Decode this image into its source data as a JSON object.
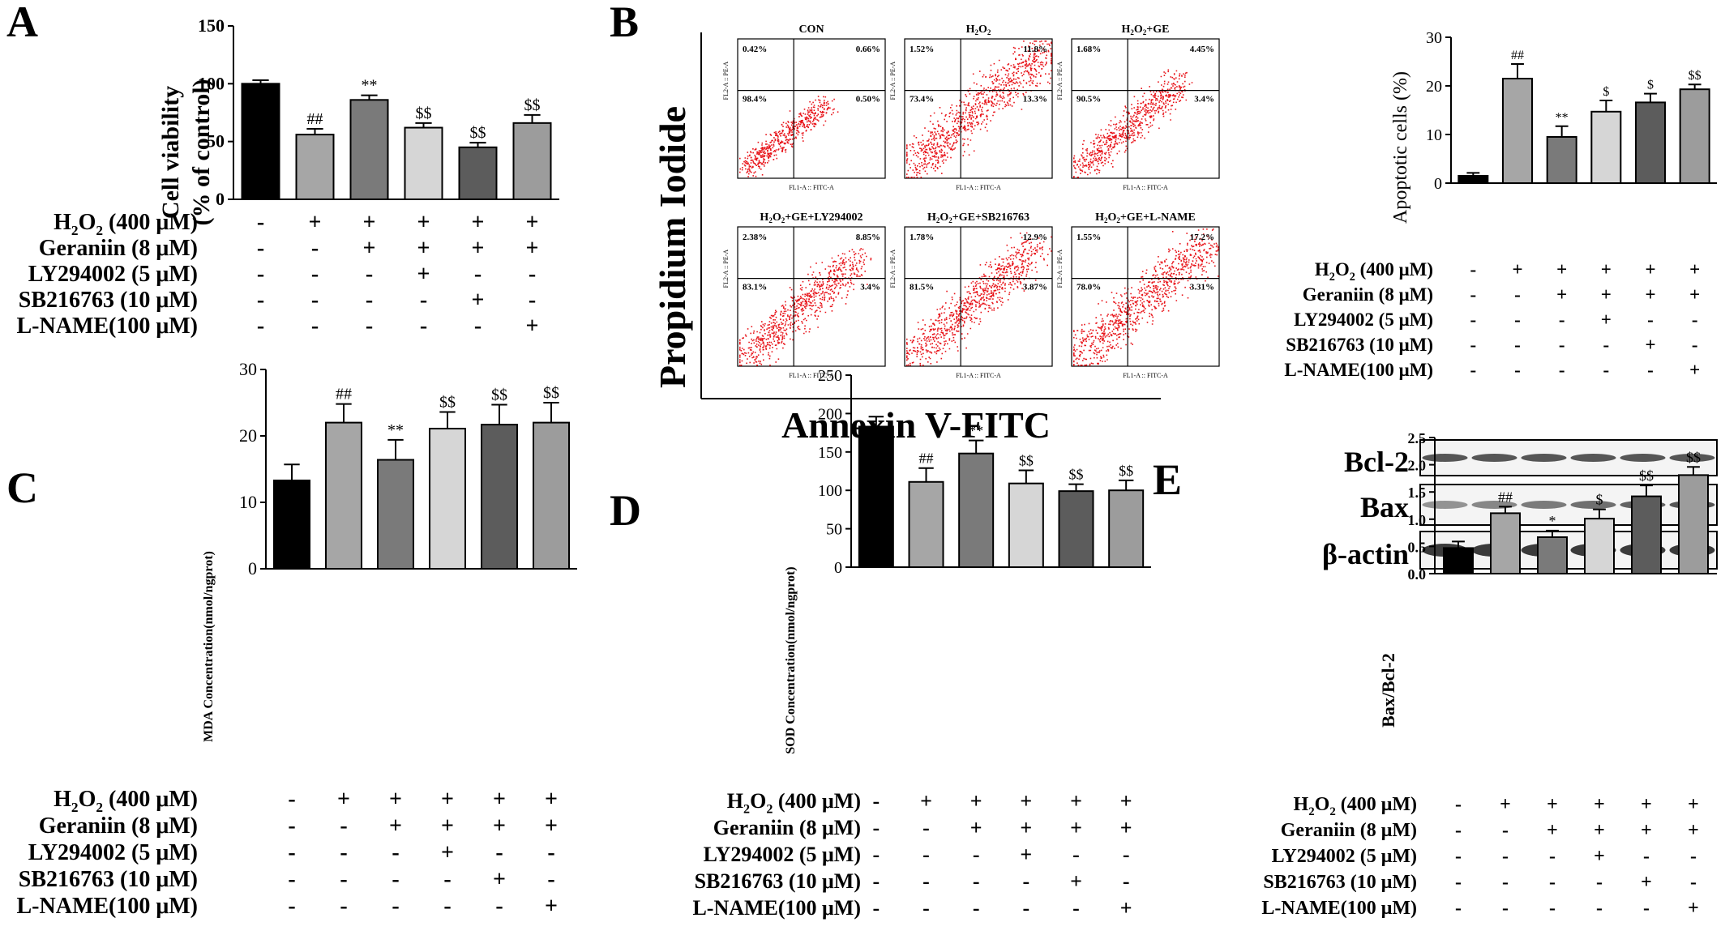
{
  "panels": {
    "A": {
      "letter": "A",
      "ylabel_line1": "Cell viability",
      "ylabel_line2": "(% of control)"
    },
    "B": {
      "letter": "B",
      "x_axis_label": "Annexin V-FITC",
      "y_axis_label": "Propidium Iodide",
      "apoptosis_ylabel": "Apoptotic cells (%)"
    },
    "C": {
      "letter": "C",
      "ylabel": "MDA Concentration(nmol/ngprot)"
    },
    "D": {
      "letter": "D",
      "ylabel": "SOD Concentration(nmol/ngprot)"
    },
    "E": {
      "letter": "E",
      "ylabel": "Bax/Bcl-2",
      "blot_labels": [
        "Bcl-2",
        "Bax",
        "β-actin"
      ]
    }
  },
  "conditions": {
    "rows": [
      {
        "pre": "H",
        "sub1": "2",
        "mid": "O",
        "sub2": "2",
        "post": " (400 μM)",
        "signs": [
          "-",
          "+",
          "+",
          "+",
          "+",
          "+"
        ]
      },
      {
        "pre": "Geraniin (8 μM)",
        "signs": [
          "-",
          "-",
          "+",
          "+",
          "+",
          "+"
        ]
      },
      {
        "pre": "LY294002 (5 μM)",
        "signs": [
          "-",
          "-",
          "-",
          "+",
          "-",
          "-"
        ]
      },
      {
        "pre": "SB216763 (10 μM)",
        "signs": [
          "-",
          "-",
          "-",
          "-",
          "+",
          "-"
        ]
      },
      {
        "pre": "L-NAME(100 μM)",
        "signs": [
          "-",
          "-",
          "-",
          "-",
          "-",
          "+"
        ]
      }
    ]
  },
  "bar_colors": [
    "#000000",
    "#a6a6a6",
    "#7a7a7a",
    "#d6d6d6",
    "#5c5c5c",
    "#9c9c9c"
  ],
  "flow": {
    "plots": [
      {
        "title_pre": "CON",
        "title_sub": "",
        "title_post": "",
        "ul": "0.42%",
        "ur": "0.66%",
        "ll": "98.4%",
        "lr": "0.50%",
        "spread": 0.0
      },
      {
        "title_pre": "H",
        "title_sub": "2",
        "title_mid": "O",
        "title_sub2": "2",
        "title_post": "",
        "ul": "1.52%",
        "ur": "11.8%",
        "ll": "73.4%",
        "lr": "13.3%",
        "spread": 1.0
      },
      {
        "title_pre": "H",
        "title_sub": "2",
        "title_mid": "O",
        "title_sub2": "2",
        "title_post": "+GE",
        "ul": "1.68%",
        "ur": "4.45%",
        "ll": "90.5%",
        "lr": "3.4%",
        "spread": 0.4
      },
      {
        "title_pre": "H",
        "title_sub": "2",
        "title_mid": "O",
        "title_sub2": "2",
        "title_post": "+GE+LY294002",
        "ul": "2.38%",
        "ur": "8.85%",
        "ll": "83.1%",
        "lr": "3.4%",
        "spread": 0.6
      },
      {
        "title_pre": "H",
        "title_sub": "2",
        "title_mid": "O",
        "title_sub2": "2",
        "title_post": "+GE+SB216763",
        "ul": "1.78%",
        "ur": "12.9%",
        "ll": "81.5%",
        "lr": "3.87%",
        "spread": 0.8
      },
      {
        "title_pre": "H",
        "title_sub": "2",
        "title_mid": "O",
        "title_sub2": "2",
        "title_post": "+GE+L-NAME",
        "ul": "1.55%",
        "ur": "17.2%",
        "ll": "78.0%",
        "lr": "3.31%",
        "spread": 0.9
      }
    ],
    "x_axis_name": "FL1-A :: FITC-A",
    "y_axis_name": "FL2-A :: PE-A"
  },
  "chart_data": [
    {
      "id": "A",
      "type": "bar",
      "categories": [
        "1",
        "2",
        "3",
        "4",
        "5",
        "6"
      ],
      "values": [
        100,
        56,
        86,
        62,
        45,
        66
      ],
      "errors": [
        3,
        5,
        4,
        4,
        4,
        7
      ],
      "annotations": [
        "",
        "##",
        "**",
        "$$",
        "$$",
        "$$"
      ],
      "ylabel": "Cell viability (% of control)",
      "ylim": [
        0,
        150
      ],
      "yticks": [
        0,
        50,
        100,
        150
      ]
    },
    {
      "id": "B",
      "type": "bar",
      "categories": [
        "1",
        "2",
        "3",
        "4",
        "5",
        "6"
      ],
      "values": [
        1.5,
        21.5,
        9.5,
        14.7,
        16.6,
        19.3
      ],
      "errors": [
        0.6,
        3.0,
        2.2,
        2.3,
        1.8,
        1.0
      ],
      "annotations": [
        "",
        "##",
        "**",
        "$",
        "$",
        "$$"
      ],
      "ylabel": "Apoptotic cells (%)",
      "ylim": [
        0,
        30
      ],
      "yticks": [
        0,
        10,
        20,
        30
      ]
    },
    {
      "id": "C",
      "type": "bar",
      "categories": [
        "1",
        "2",
        "3",
        "4",
        "5",
        "6"
      ],
      "values": [
        13.3,
        22,
        16.4,
        21.1,
        21.7,
        22
      ],
      "errors": [
        2.4,
        2.8,
        3.0,
        2.5,
        3.0,
        3.0
      ],
      "annotations": [
        "",
        "##",
        "**",
        "$$",
        "$$",
        "$$"
      ],
      "ylabel": "MDA Concentration(nmol/ngprot)",
      "ylim": [
        0,
        30
      ],
      "yticks": [
        0,
        10,
        20,
        30
      ]
    },
    {
      "id": "D",
      "type": "bar",
      "categories": [
        "1",
        "2",
        "3",
        "4",
        "5",
        "6"
      ],
      "values": [
        183,
        111,
        148,
        109,
        99,
        100
      ],
      "errors": [
        13,
        18,
        17,
        17,
        9,
        13
      ],
      "annotations": [
        "",
        "##",
        "**",
        "$$",
        "$$",
        "$$"
      ],
      "ylabel": "SOD Concentration(nmol/ngprot)",
      "ylim": [
        0,
        250
      ],
      "yticks": [
        0,
        50,
        100,
        150,
        200,
        250
      ]
    },
    {
      "id": "E",
      "type": "bar",
      "categories": [
        "1",
        "2",
        "3",
        "4",
        "5",
        "6"
      ],
      "values": [
        0.47,
        1.11,
        0.67,
        1.01,
        1.42,
        1.81
      ],
      "errors": [
        0.12,
        0.12,
        0.12,
        0.17,
        0.2,
        0.15
      ],
      "annotations": [
        "",
        "##",
        "*",
        "$",
        "$$",
        "$$"
      ],
      "ylabel": "Bax/Bcl-2",
      "ylim": [
        0,
        2.5
      ],
      "yticks": [
        "0.0",
        "0.5",
        "1.0",
        "1.5",
        "2.0",
        "2.5"
      ]
    }
  ]
}
